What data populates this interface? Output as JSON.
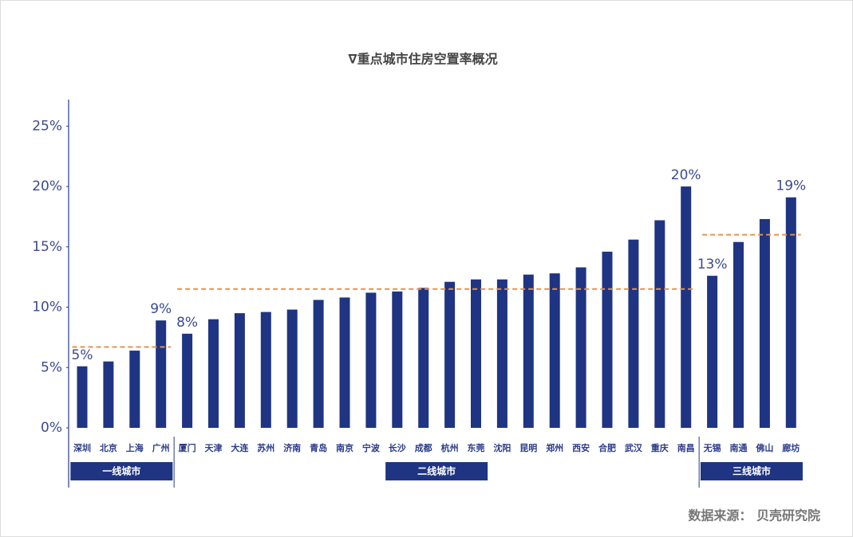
{
  "chart_data": {
    "type": "bar",
    "title": "∇重点城市住房空置率概况",
    "source": "数据来源： 贝壳研究院",
    "color": "#1f3482",
    "average_color": "#e8914a",
    "ylim": [
      0,
      27.2
    ],
    "yticks": [
      {
        "value": 0,
        "label": "0%"
      },
      {
        "value": 5,
        "label": "5%"
      },
      {
        "value": 10,
        "label": "10%"
      },
      {
        "value": 15,
        "label": "15%"
      },
      {
        "value": 20,
        "label": "20%"
      },
      {
        "value": 25,
        "label": "25%"
      }
    ],
    "groups": [
      {
        "label": "一线城市",
        "categories": [
          "深圳",
          "北京",
          "上海",
          "广州"
        ],
        "values": [
          5.1,
          5.5,
          6.4,
          8.9
        ],
        "value_labels": [
          "5%",
          null,
          null,
          "9%"
        ],
        "average": 6.7
      },
      {
        "label": "二线城市",
        "categories": [
          "厦门",
          "天津",
          "大连",
          "苏州",
          "济南",
          "青岛",
          "南京",
          "宁波",
          "长沙",
          "成都",
          "杭州",
          "东莞",
          "沈阳",
          "昆明",
          "郑州",
          "西安",
          "合肥",
          "武汉",
          "重庆",
          "南昌"
        ],
        "values": [
          7.8,
          9.0,
          9.5,
          9.6,
          9.8,
          10.6,
          10.8,
          11.2,
          11.3,
          11.6,
          12.1,
          12.3,
          12.3,
          12.7,
          12.8,
          13.3,
          14.6,
          15.6,
          17.2,
          20.0
        ],
        "value_labels": [
          "8%",
          null,
          null,
          null,
          null,
          null,
          null,
          null,
          null,
          null,
          null,
          null,
          null,
          null,
          null,
          null,
          null,
          null,
          null,
          "20%"
        ],
        "average": 11.5
      },
      {
        "label": "三线城市",
        "categories": [
          "无锡",
          "南通",
          "佛山",
          "廊坊"
        ],
        "values": [
          12.6,
          15.4,
          17.3,
          19.1
        ],
        "value_labels": [
          "13%",
          null,
          null,
          "19%"
        ],
        "average": 16.0
      }
    ]
  }
}
